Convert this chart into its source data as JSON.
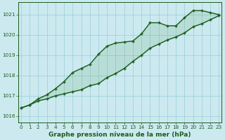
{
  "xlabel": "Graphe pression niveau de la mer (hPa)",
  "bg_color": "#cce9f0",
  "grid_color": "#99cdd9",
  "line_color": "#1a5c1a",
  "fill_color": "#4a9a4a",
  "ylim_min": 1015.7,
  "ylim_max": 1021.6,
  "xlim_min": -0.3,
  "xlim_max": 23.3,
  "yticks": [
    1016,
    1017,
    1018,
    1019,
    1020,
    1021
  ],
  "xticks": [
    0,
    1,
    2,
    3,
    4,
    5,
    6,
    7,
    8,
    9,
    10,
    11,
    12,
    13,
    14,
    15,
    16,
    17,
    18,
    19,
    20,
    21,
    22,
    23
  ],
  "series_curved_x": [
    0,
    1,
    2,
    3,
    4,
    5,
    6,
    7,
    8,
    9,
    10,
    11,
    12,
    13,
    14,
    15,
    16,
    17,
    18,
    19,
    20,
    21,
    22,
    23
  ],
  "series_curved_y": [
    1016.4,
    1016.55,
    1016.85,
    1017.05,
    1017.35,
    1017.7,
    1018.15,
    1018.35,
    1018.55,
    1019.05,
    1019.45,
    1019.6,
    1019.65,
    1019.7,
    1020.05,
    1020.6,
    1020.6,
    1020.45,
    1020.45,
    1020.85,
    1021.2,
    1021.2,
    1021.1,
    1021.0
  ],
  "series_linear_x": [
    0,
    1,
    2,
    3,
    4,
    5,
    6,
    7,
    8,
    9,
    10,
    11,
    12,
    13,
    14,
    15,
    16,
    17,
    18,
    19,
    20,
    21,
    22,
    23
  ],
  "series_linear_y": [
    1016.4,
    1016.55,
    1016.75,
    1016.85,
    1017.0,
    1017.1,
    1017.2,
    1017.3,
    1017.5,
    1017.6,
    1017.9,
    1018.1,
    1018.35,
    1018.7,
    1019.0,
    1019.35,
    1019.55,
    1019.75,
    1019.9,
    1020.1,
    1020.4,
    1020.55,
    1020.75,
    1020.95
  ],
  "marker": "+",
  "marker_size": 3.5,
  "marker_edge_width": 1.0,
  "line_width": 1.0,
  "tick_fontsize": 5.2,
  "xlabel_fontsize": 6.5,
  "tick_color": "#1a5c1a",
  "spine_color": "#1a5c1a"
}
